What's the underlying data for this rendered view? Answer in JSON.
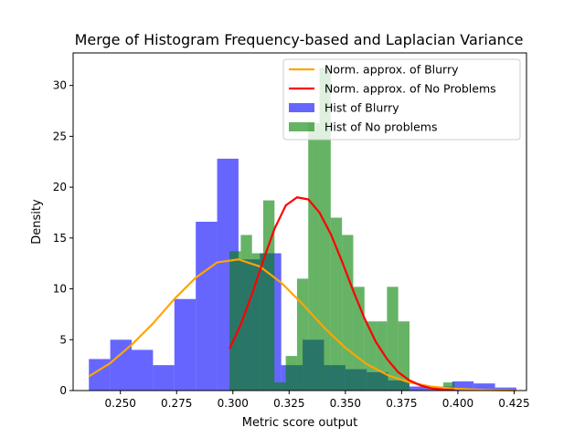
{
  "chart_data": {
    "type": "histogram",
    "title": "Merge of Histogram Frequency-based and Laplacian Variance",
    "xlabel": "Metric score output",
    "ylabel": "Density",
    "xlim": [
      0.229,
      0.4305
    ],
    "ylim": [
      0,
      33.2
    ],
    "xticks": [
      0.25,
      0.275,
      0.3,
      0.325,
      0.35,
      0.375,
      0.4,
      0.425
    ],
    "xtick_labels": [
      "0.250",
      "0.275",
      "0.300",
      "0.325",
      "0.350",
      "0.375",
      "0.400",
      "0.425"
    ],
    "yticks": [
      0,
      5,
      10,
      15,
      20,
      25,
      30
    ],
    "ytick_labels": [
      "0",
      "5",
      "10",
      "15",
      "20",
      "25",
      "30"
    ],
    "grid": false,
    "legend_position": "top-right",
    "histograms": [
      {
        "name": "Hist of Blurry",
        "color": "#0000ff",
        "alpha": 0.6,
        "edges": [
          0.236,
          0.2455,
          0.255,
          0.2645,
          0.274,
          0.2835,
          0.293,
          0.3025,
          0.312,
          0.3215,
          0.331,
          0.3405,
          0.35,
          0.3595,
          0.369,
          0.3785,
          0.388,
          0.3975,
          0.407,
          0.4165,
          0.426
        ],
        "density": [
          3.1,
          5.0,
          4.0,
          2.5,
          9.0,
          16.6,
          22.8,
          12.9,
          13.5,
          2.5,
          5.0,
          2.5,
          2.1,
          1.8,
          1.0,
          0.4,
          0.4,
          0.9,
          0.7,
          0.3
        ]
      },
      {
        "name": "Hist of No problems",
        "color": "#008000",
        "alpha": 0.6,
        "edges": [
          0.2985,
          0.3035,
          0.3085,
          0.3135,
          0.3185,
          0.3235,
          0.3285,
          0.3335,
          0.3385,
          0.3435,
          0.3485,
          0.3535,
          0.3585,
          0.3635,
          0.3685,
          0.3735,
          0.3785,
          0.3835,
          0.3885,
          0.3935,
          0.3985
        ],
        "density": [
          13.7,
          15.3,
          13.5,
          18.7,
          0.8,
          3.4,
          11.0,
          26.3,
          31.7,
          17.0,
          15.3,
          10.2,
          6.8,
          6.8,
          10.2,
          6.8,
          0.0,
          0.0,
          0.0,
          0.8
        ]
      }
    ],
    "lines": [
      {
        "name": "Norm. approx. of Blurry",
        "color": "#ffa500",
        "x": [
          0.236,
          0.2455,
          0.255,
          0.2645,
          0.274,
          0.2835,
          0.293,
          0.3025,
          0.312,
          0.3215,
          0.331,
          0.3405,
          0.35,
          0.3595,
          0.369,
          0.3785,
          0.388,
          0.3975,
          0.407,
          0.4165,
          0.426
        ],
        "y": [
          1.4,
          2.7,
          4.5,
          6.6,
          9.0,
          11.1,
          12.6,
          12.9,
          12.2,
          10.6,
          8.5,
          6.2,
          4.2,
          2.6,
          1.5,
          0.8,
          0.4,
          0.2,
          0.1,
          0.04,
          0.01
        ]
      },
      {
        "name": "Norm. approx. of No Problems",
        "color": "#ff0000",
        "x": [
          0.2985,
          0.3035,
          0.3085,
          0.3135,
          0.3185,
          0.3235,
          0.3285,
          0.3335,
          0.3385,
          0.3435,
          0.3485,
          0.3535,
          0.3585,
          0.3635,
          0.3685,
          0.3735,
          0.3785,
          0.3835,
          0.3885,
          0.3935,
          0.3985
        ],
        "y": [
          4.1,
          6.5,
          9.5,
          12.8,
          15.9,
          18.2,
          19.0,
          18.8,
          17.5,
          15.4,
          12.7,
          9.8,
          7.1,
          4.8,
          3.1,
          1.8,
          1.0,
          0.5,
          0.2,
          0.1,
          0.05
        ]
      }
    ],
    "legend": [
      {
        "label": "Norm. approx. of Blurry",
        "kind": "line",
        "color": "#ffa500"
      },
      {
        "label": "Norm. approx. of No Problems",
        "kind": "line",
        "color": "#ff0000"
      },
      {
        "label": "Hist of Blurry",
        "kind": "patch",
        "color": "#0000ff",
        "alpha": 0.6
      },
      {
        "label": "Hist of No problems",
        "kind": "patch",
        "color": "#008000",
        "alpha": 0.6
      }
    ]
  }
}
